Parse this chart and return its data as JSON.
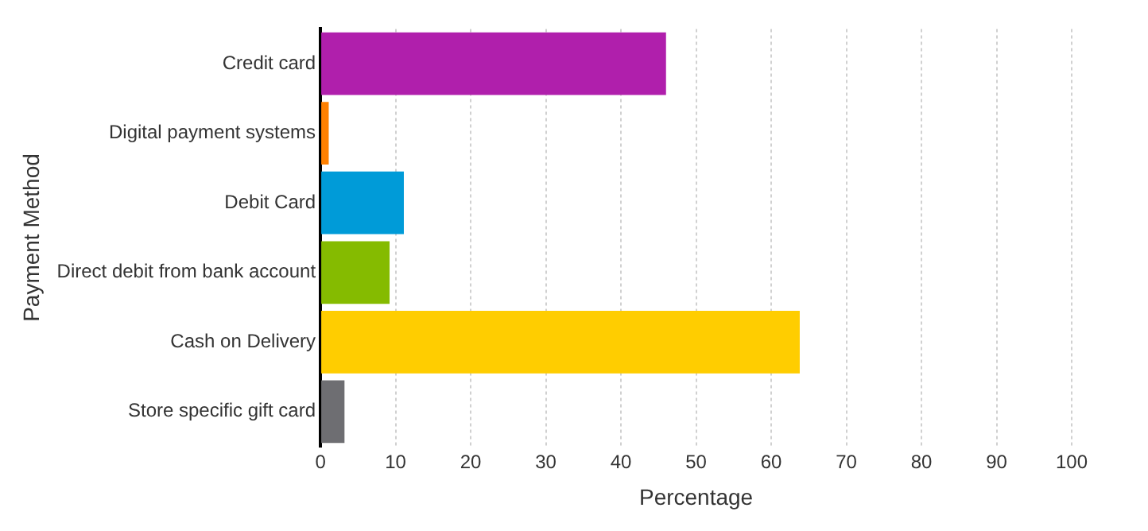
{
  "chart_data": {
    "type": "bar",
    "orientation": "horizontal",
    "xlabel": "Percentage",
    "ylabel": "Payment Method",
    "categories": [
      "Credit card",
      "Digital payment systems",
      "Debit Card",
      "Direct debit from bank account",
      "Cash on Delivery",
      "Store specific gift card"
    ],
    "values": [
      46,
      1.1,
      11.1,
      9.2,
      63.8,
      3.2
    ],
    "colors": [
      "#b01fac",
      "#ff8000",
      "#009bd8",
      "#85bb00",
      "#ffcd00",
      "#6e6e72"
    ],
    "xlim": [
      0,
      100
    ],
    "xticks": [
      0,
      10,
      20,
      30,
      40,
      50,
      60,
      70,
      80,
      90,
      100
    ],
    "grid": "x",
    "legend": false
  }
}
